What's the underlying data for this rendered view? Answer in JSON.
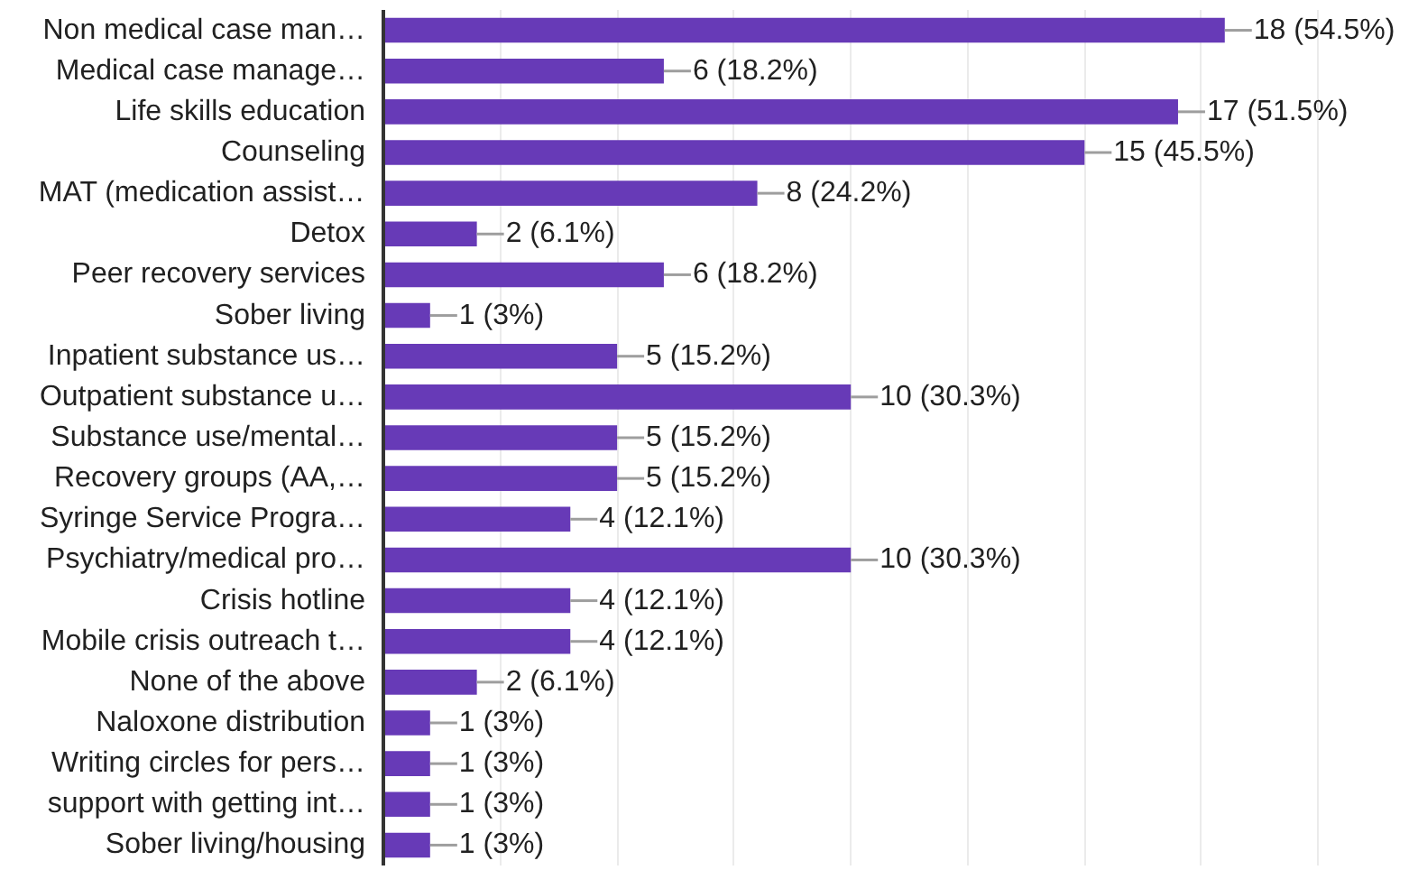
{
  "chart_data": {
    "type": "bar",
    "orientation": "horizontal",
    "categories": [
      "Non medical case man…",
      "Medical case manage…",
      "Life skills education",
      "Counseling",
      "MAT (medication assist…",
      "Detox",
      "Peer recovery services",
      "Sober living",
      "Inpatient substance us…",
      "Outpatient substance u…",
      "Substance use/mental…",
      "Recovery groups (AA,…",
      "Syringe Service Progra…",
      "Psychiatry/medical pro…",
      "Crisis hotline",
      "Mobile crisis outreach t…",
      "None of the above",
      "Naloxone distribution",
      "Writing circles for pers…",
      "support with getting int…",
      "Sober living/housing"
    ],
    "values": [
      18,
      6,
      17,
      15,
      8,
      2,
      6,
      1,
      5,
      10,
      5,
      5,
      4,
      10,
      4,
      4,
      2,
      1,
      1,
      1,
      1
    ],
    "value_labels": [
      "18 (54.5%)",
      "6 (18.2%)",
      "17 (51.5%)",
      "15 (45.5%)",
      "8 (24.2%)",
      "2 (6.1%)",
      "6 (18.2%)",
      "1 (3%)",
      "5 (15.2%)",
      "10 (30.3%)",
      "5 (15.2%)",
      "5 (15.2%)",
      "4 (12.1%)",
      "10 (30.3%)",
      "4 (12.1%)",
      "4 (12.1%)",
      "2 (6.1%)",
      "1 (3%)",
      "1 (3%)",
      "1 (3%)",
      "1 (3%)"
    ],
    "color": "#673ab7",
    "xticks": [
      {
        "value": 2.5,
        "label": null
      },
      {
        "value": 5,
        "label": null
      },
      {
        "value": 7.5,
        "label": null
      },
      {
        "value": 10,
        "label": null
      },
      {
        "value": 12.5,
        "label": null
      },
      {
        "value": 15,
        "label": null
      },
      {
        "value": 17.5,
        "label": null
      },
      {
        "value": 20,
        "label": null
      }
    ],
    "grid": "x",
    "tick_labels": "y"
  }
}
